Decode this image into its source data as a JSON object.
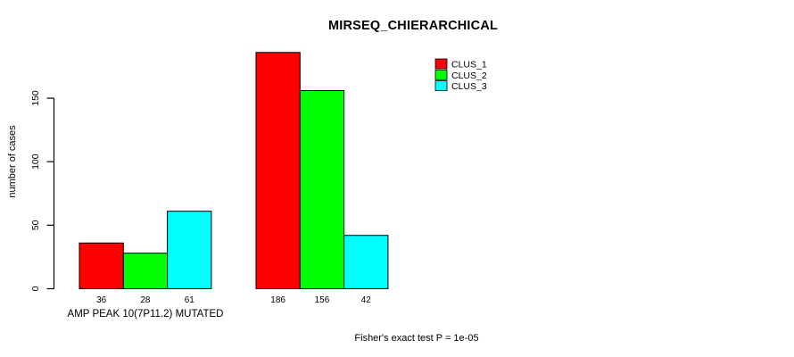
{
  "chart_data": {
    "type": "bar",
    "title": "MIRSEQ_CHIERARCHICAL",
    "ylabel": "number of cases",
    "xlabel": "",
    "yticks": [
      0,
      50,
      100,
      150
    ],
    "ylim": [
      0,
      150
    ],
    "grid": false,
    "legend_position": "top-right",
    "series": [
      {
        "name": "CLUS_1",
        "color": "#FF0000"
      },
      {
        "name": "CLUS_2",
        "color": "#00FF00"
      },
      {
        "name": "CLUS_3",
        "color": "#00FFFF"
      }
    ],
    "categories": [
      "AMP PEAK 10(7P11.2) MUTATED",
      ""
    ],
    "groups": [
      {
        "label": "AMP PEAK 10(7P11.2) MUTATED",
        "values": [
          36,
          28,
          61
        ]
      },
      {
        "label": "",
        "values": [
          186,
          156,
          42
        ]
      }
    ],
    "bar_value_labels": [
      36,
      28,
      61,
      186,
      156,
      42
    ],
    "annotation": "Fisher's exact test P = 1e-05",
    "colors": {
      "background": "#FFFFFF",
      "axis": "#000000",
      "bar_border": "#000000",
      "text": "#000000"
    }
  }
}
